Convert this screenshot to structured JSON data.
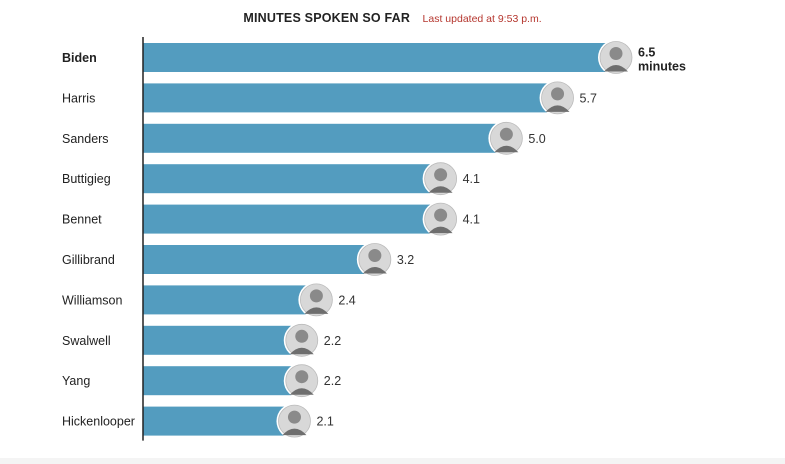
{
  "header": {
    "title": "MINUTES SPOKEN SO FAR",
    "updated": "Last updated at 9:53 p.m."
  },
  "colors": {
    "bar": "#539cbf",
    "axis": "#222222",
    "portrait_ring": "#ffffff",
    "portrait_bg": "#d8d8d8"
  },
  "chart_data": {
    "type": "bar",
    "orientation": "horizontal",
    "title": "MINUTES SPOKEN SO FAR",
    "unit_label": "minutes",
    "categories": [
      "Biden",
      "Harris",
      "Sanders",
      "Buttigieg",
      "Bennet",
      "Gillibrand",
      "Williamson",
      "Swalwell",
      "Yang",
      "Hickenlooper"
    ],
    "values": [
      6.5,
      5.7,
      5.0,
      4.1,
      4.1,
      3.2,
      2.4,
      2.2,
      2.2,
      2.1
    ],
    "value_labels": [
      "6.5",
      "5.7",
      "5.0",
      "4.1",
      "4.1",
      "3.2",
      "2.4",
      "2.2",
      "2.2",
      "2.1"
    ],
    "highlight": "Biden",
    "xlim": [
      0,
      6.5
    ],
    "grid": false,
    "legend": "none"
  }
}
